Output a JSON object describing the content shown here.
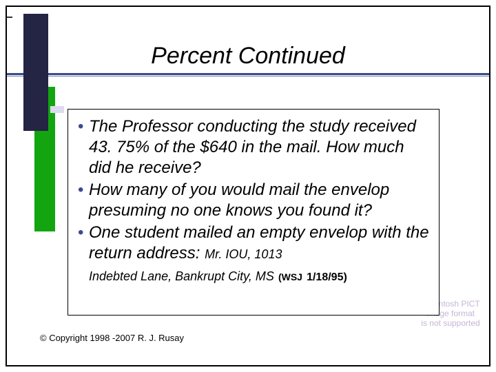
{
  "slide": {
    "title": "Percent Continued",
    "title_color": "#000000",
    "title_fontsize": 34,
    "rule_color_primary": "#3b4a8f",
    "rule_color_secondary": "#6d7aa8",
    "background_color": "#ffffff",
    "border_color": "#000000"
  },
  "decor": {
    "bar_dark_color": "#242445",
    "bar_green_color": "#13a510",
    "bar_lavender_color": "#dedaf0"
  },
  "content": {
    "bullets": [
      "The Professor conducting the study received 43. 75% of the $640 in the mail. How much did he receive?",
      "How many of you would mail the envelop presuming no one knows you found it?",
      "One student mailed an empty envelop with the return address:"
    ],
    "address_inline": "Mr. IOU, 1013",
    "address_line2": "Indebted Lane, Bankrupt City, MS",
    "source_label": "(WSJ",
    "source_date": "1/18/95)",
    "bullet_color": "#3b4a8f",
    "text_fontsize": 24,
    "box_border_color": "#000000"
  },
  "footer": {
    "copyright": "© Copyright 1998 -2007 R. J. Rusay"
  },
  "pict": {
    "line1": "Macintosh PICT",
    "line2": "image format",
    "line3": "is not supported",
    "color": "#c4b6d6"
  }
}
